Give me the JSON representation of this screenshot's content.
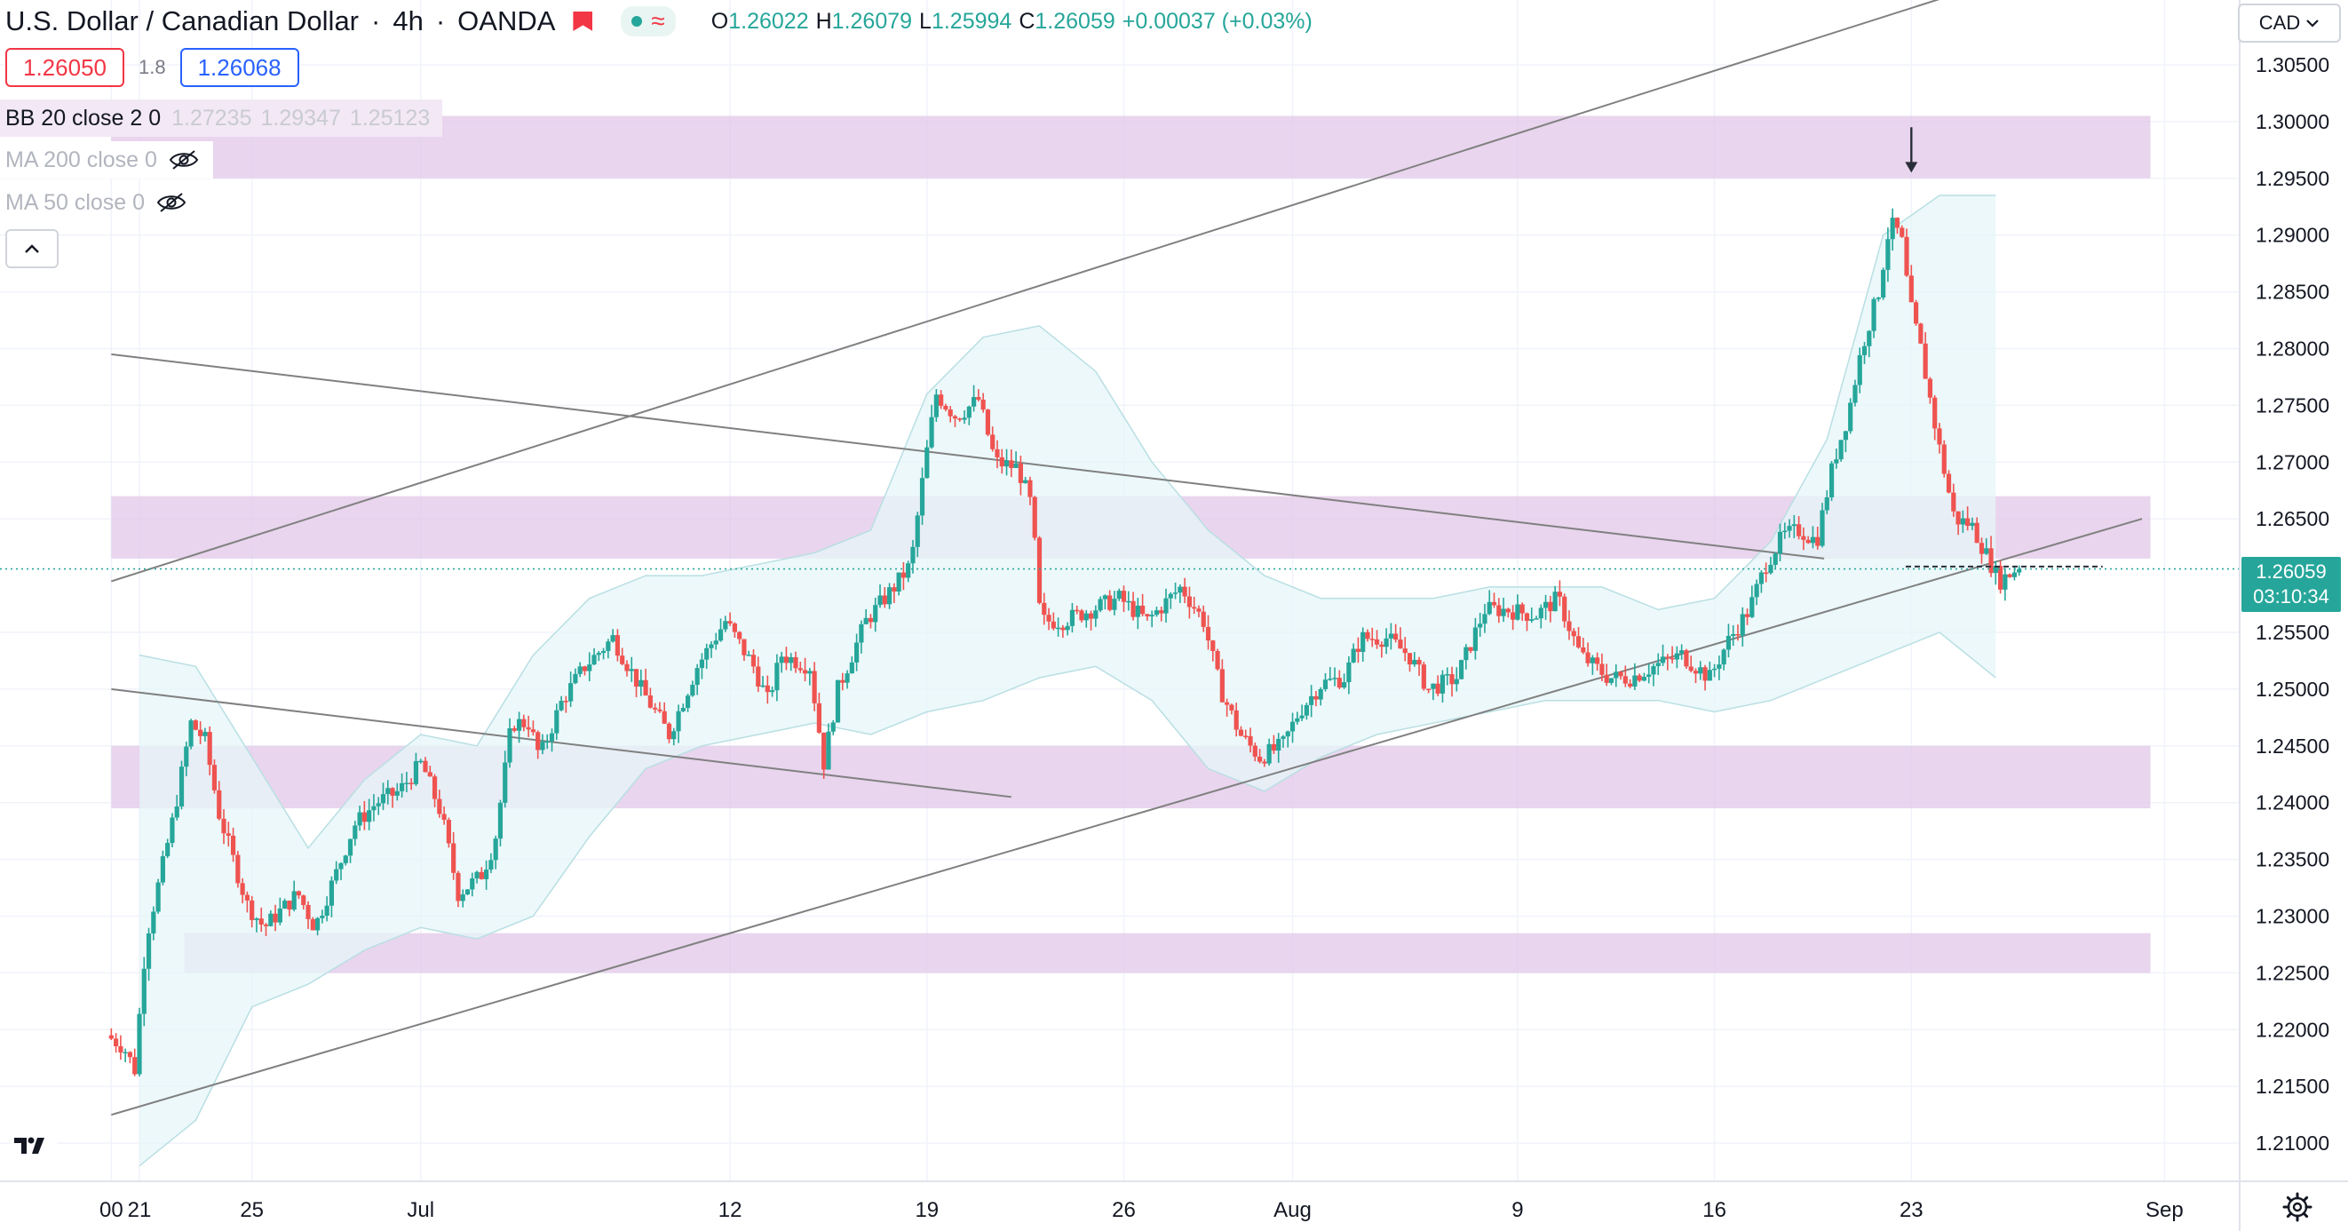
{
  "header": {
    "symbol": "U.S. Dollar / Canadian Dollar",
    "interval": "4h",
    "source": "OANDA",
    "ohlc": {
      "open_label": "O",
      "open": "1.26022",
      "high_label": "H",
      "high": "1.26079",
      "low_label": "L",
      "low": "1.25994",
      "close_label": "C",
      "close": "1.26059",
      "change": "+0.00037 (+0.03%)"
    }
  },
  "trade": {
    "sell_price": "1.26050",
    "spread": "1.8",
    "buy_price": "1.26068"
  },
  "indicators": [
    {
      "name": "BB 20 close 2 0",
      "values": [
        "1.27235",
        "1.29347",
        "1.25123"
      ],
      "hidden": false
    },
    {
      "name": "MA 200 close 0",
      "values": [],
      "hidden": true
    },
    {
      "name": "MA 50 close 0",
      "values": [],
      "hidden": true
    }
  ],
  "currency_button": "CAD",
  "last_price": {
    "value": "1.26059",
    "countdown": "03:10:34"
  },
  "colors": {
    "up": "#26a69a",
    "down": "#ef5350",
    "zone": "#e1c5e7",
    "bb_fill": "#e6f6f8",
    "trendline": "#808080",
    "grid": "#f0f3fa"
  },
  "icons": [
    "flag-icon",
    "market-status-icon",
    "chevron-up-icon",
    "eye-off-icon",
    "chevron-down-icon",
    "tradingview-logo-icon",
    "settings-gear-icon",
    "down-arrow-icon"
  ],
  "chart_data": {
    "type": "candlestick",
    "title": "U.S. Dollar / Canadian Dollar",
    "y_axis_ticks": [
      "1.30500",
      "1.30000",
      "1.29500",
      "1.29000",
      "1.28500",
      "1.28000",
      "1.27500",
      "1.27000",
      "1.26500",
      "1.25500",
      "1.25000",
      "1.24500",
      "1.24000",
      "1.23500",
      "1.23000",
      "1.22500",
      "1.22000",
      "1.21500",
      "1.21000"
    ],
    "y_range": [
      1.2055,
      1.3075
    ],
    "x_axis_ticks": [
      {
        "label": "00",
        "day": -1
      },
      {
        "label": "21",
        "day": 0
      },
      {
        "label": "25",
        "day": 4
      },
      {
        "label": "Jul",
        "day": 10
      },
      {
        "label": "12",
        "day": 21
      },
      {
        "label": "19",
        "day": 28
      },
      {
        "label": "26",
        "day": 35
      },
      {
        "label": "Aug",
        "day": 41
      },
      {
        "label": "9",
        "day": 49
      },
      {
        "label": "16",
        "day": 56
      },
      {
        "label": "23",
        "day": 63
      },
      {
        "label": "Sep",
        "day": 72
      }
    ],
    "series_path": [
      [
        -1.0,
        1.2195
      ],
      [
        -0.4,
        1.2185
      ],
      [
        0.0,
        1.2165
      ],
      [
        0.4,
        1.228
      ],
      [
        1.0,
        1.2345
      ],
      [
        1.4,
        1.239
      ],
      [
        2.0,
        1.247
      ],
      [
        2.5,
        1.2455
      ],
      [
        3.0,
        1.239
      ],
      [
        3.5,
        1.235
      ],
      [
        4.0,
        1.231
      ],
      [
        4.6,
        1.229
      ],
      [
        5.2,
        1.2305
      ],
      [
        5.8,
        1.232
      ],
      [
        6.4,
        1.229
      ],
      [
        7.2,
        1.234
      ],
      [
        7.8,
        1.238
      ],
      [
        8.6,
        1.24
      ],
      [
        9.4,
        1.241
      ],
      [
        10.2,
        1.2435
      ],
      [
        10.9,
        1.239
      ],
      [
        11.5,
        1.232
      ],
      [
        12.3,
        1.2335
      ],
      [
        12.8,
        1.2365
      ],
      [
        13.4,
        1.247
      ],
      [
        14.0,
        1.247
      ],
      [
        14.4,
        1.244
      ],
      [
        15.2,
        1.249
      ],
      [
        16.0,
        1.252
      ],
      [
        17.0,
        1.2545
      ],
      [
        18.0,
        1.25
      ],
      [
        19.0,
        1.246
      ],
      [
        20.0,
        1.252
      ],
      [
        21.0,
        1.256
      ],
      [
        22.0,
        1.252
      ],
      [
        22.5,
        1.249
      ],
      [
        23.0,
        1.253
      ],
      [
        24.0,
        1.252
      ],
      [
        24.5,
        1.2435
      ],
      [
        25.0,
        1.25
      ],
      [
        26.0,
        1.256
      ],
      [
        27.0,
        1.259
      ],
      [
        27.6,
        1.261
      ],
      [
        28.1,
        1.27
      ],
      [
        28.5,
        1.276
      ],
      [
        29.2,
        1.274
      ],
      [
        30.0,
        1.2755
      ],
      [
        30.6,
        1.27
      ],
      [
        31.4,
        1.2695
      ],
      [
        31.9,
        1.266
      ],
      [
        32.2,
        1.256
      ],
      [
        33.0,
        1.256
      ],
      [
        34.0,
        1.257
      ],
      [
        35.0,
        1.258
      ],
      [
        36.0,
        1.256
      ],
      [
        37.2,
        1.259
      ],
      [
        38.0,
        1.256
      ],
      [
        38.6,
        1.25
      ],
      [
        39.3,
        1.246
      ],
      [
        40.0,
        1.244
      ],
      [
        40.8,
        1.245
      ],
      [
        41.4,
        1.248
      ],
      [
        42.2,
        1.2505
      ],
      [
        43.0,
        1.251
      ],
      [
        43.6,
        1.2545
      ],
      [
        44.5,
        1.2545
      ],
      [
        45.3,
        1.253
      ],
      [
        46.0,
        1.25
      ],
      [
        47.0,
        1.251
      ],
      [
        48.0,
        1.257
      ],
      [
        48.8,
        1.257
      ],
      [
        49.8,
        1.2565
      ],
      [
        50.6,
        1.258
      ],
      [
        51.4,
        1.253
      ],
      [
        52.4,
        1.251
      ],
      [
        53.2,
        1.251
      ],
      [
        54.0,
        1.252
      ],
      [
        55.0,
        1.253
      ],
      [
        56.0,
        1.251
      ],
      [
        56.6,
        1.254
      ],
      [
        57.4,
        1.257
      ],
      [
        58.0,
        1.261
      ],
      [
        58.6,
        1.2635
      ],
      [
        59.2,
        1.264
      ],
      [
        59.8,
        1.263
      ],
      [
        60.4,
        1.27
      ],
      [
        60.9,
        1.274
      ],
      [
        61.4,
        1.28
      ],
      [
        62.0,
        1.285
      ],
      [
        62.4,
        1.291
      ],
      [
        62.8,
        1.29
      ],
      [
        63.1,
        1.284
      ],
      [
        63.5,
        1.28
      ],
      [
        64.1,
        1.272
      ],
      [
        64.7,
        1.265
      ],
      [
        65.3,
        1.2645
      ],
      [
        65.8,
        1.262
      ],
      [
        66.3,
        1.2595
      ],
      [
        66.9,
        1.2606
      ]
    ],
    "bollinger_upper": [
      [
        0,
        1.253
      ],
      [
        2,
        1.252
      ],
      [
        4,
        1.244
      ],
      [
        6,
        1.236
      ],
      [
        8,
        1.242
      ],
      [
        10,
        1.246
      ],
      [
        12,
        1.245
      ],
      [
        14,
        1.253
      ],
      [
        16,
        1.258
      ],
      [
        18,
        1.26
      ],
      [
        20,
        1.26
      ],
      [
        22,
        1.261
      ],
      [
        24,
        1.262
      ],
      [
        26,
        1.264
      ],
      [
        28,
        1.276
      ],
      [
        30,
        1.281
      ],
      [
        32,
        1.282
      ],
      [
        34,
        1.278
      ],
      [
        36,
        1.27
      ],
      [
        38,
        1.264
      ],
      [
        40,
        1.26
      ],
      [
        42,
        1.258
      ],
      [
        44,
        1.258
      ],
      [
        46,
        1.258
      ],
      [
        48,
        1.259
      ],
      [
        50,
        1.259
      ],
      [
        52,
        1.259
      ],
      [
        54,
        1.257
      ],
      [
        56,
        1.258
      ],
      [
        58,
        1.263
      ],
      [
        60,
        1.272
      ],
      [
        62,
        1.29
      ],
      [
        64,
        1.2935
      ],
      [
        66,
        1.2935
      ]
    ],
    "bollinger_lower": [
      [
        0,
        1.208
      ],
      [
        2,
        1.212
      ],
      [
        4,
        1.222
      ],
      [
        6,
        1.224
      ],
      [
        8,
        1.227
      ],
      [
        10,
        1.229
      ],
      [
        12,
        1.228
      ],
      [
        14,
        1.23
      ],
      [
        16,
        1.237
      ],
      [
        18,
        1.243
      ],
      [
        20,
        1.245
      ],
      [
        22,
        1.246
      ],
      [
        24,
        1.247
      ],
      [
        26,
        1.246
      ],
      [
        28,
        1.248
      ],
      [
        30,
        1.249
      ],
      [
        32,
        1.251
      ],
      [
        34,
        1.252
      ],
      [
        36,
        1.249
      ],
      [
        38,
        1.243
      ],
      [
        40,
        1.241
      ],
      [
        42,
        1.244
      ],
      [
        44,
        1.246
      ],
      [
        46,
        1.247
      ],
      [
        48,
        1.248
      ],
      [
        50,
        1.249
      ],
      [
        52,
        1.249
      ],
      [
        54,
        1.249
      ],
      [
        56,
        1.248
      ],
      [
        58,
        1.249
      ],
      [
        60,
        1.251
      ],
      [
        62,
        1.253
      ],
      [
        64,
        1.255
      ],
      [
        66,
        1.251
      ]
    ],
    "zones": [
      {
        "from_day": -1,
        "to_day": 71.5,
        "low": 1.295,
        "high": 1.3005
      },
      {
        "from_day": -1,
        "to_day": 71.5,
        "low": 1.2615,
        "high": 1.267
      },
      {
        "from_day": -1,
        "to_day": 71.5,
        "low": 1.2395,
        "high": 1.245
      },
      {
        "from_day": 1.6,
        "to_day": 71.5,
        "low": 1.225,
        "high": 1.2285
      }
    ],
    "trendlines": [
      {
        "x1": -1.0,
        "y1": 1.2595,
        "x2": 68.7,
        "y2": 1.3145
      },
      {
        "x1": -1.0,
        "y1": 1.2125,
        "x2": 71.2,
        "y2": 1.265
      },
      {
        "x1": -1.0,
        "y1": 1.2795,
        "x2": 59.9,
        "y2": 1.2615
      },
      {
        "x1": -1.0,
        "y1": 1.25,
        "x2": 31.0,
        "y2": 1.2405
      }
    ],
    "annotations": [
      {
        "type": "arrow_down",
        "day": 63.0,
        "from": 1.2995,
        "to": 1.2955
      },
      {
        "type": "dashed_level",
        "from_day": 62.8,
        "to_day": 69.8,
        "value": 1.2608
      }
    ],
    "last_price": 1.26059
  }
}
